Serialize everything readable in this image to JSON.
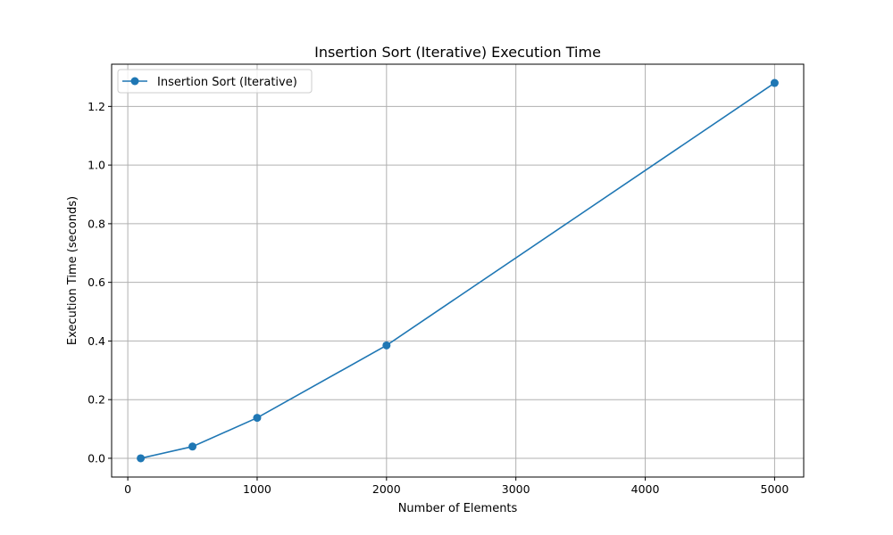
{
  "chart_data": {
    "type": "line",
    "title": "Insertion Sort (Iterative) Execution Time",
    "xlabel": "Number of Elements",
    "ylabel": "Execution Time (seconds)",
    "xlim": [
      -125,
      5225
    ],
    "ylim": [
      -0.064,
      1.344
    ],
    "xticks": [
      0,
      1000,
      2000,
      3000,
      4000,
      5000
    ],
    "xtick_labels": [
      "0",
      "1000",
      "2000",
      "3000",
      "4000",
      "5000"
    ],
    "yticks": [
      0.0,
      0.2,
      0.4,
      0.6,
      0.8,
      1.0,
      1.2
    ],
    "ytick_labels": [
      "0.0",
      "0.2",
      "0.4",
      "0.6",
      "0.8",
      "1.0",
      "1.2"
    ],
    "grid": true,
    "legend_position": "top-left",
    "series": [
      {
        "name": "Insertion Sort (Iterative)",
        "color": "#1f77b4",
        "marker": "circle",
        "x": [
          100,
          500,
          1000,
          2000,
          5000
        ],
        "y": [
          0.0,
          0.04,
          0.138,
          0.385,
          1.28
        ]
      }
    ]
  }
}
